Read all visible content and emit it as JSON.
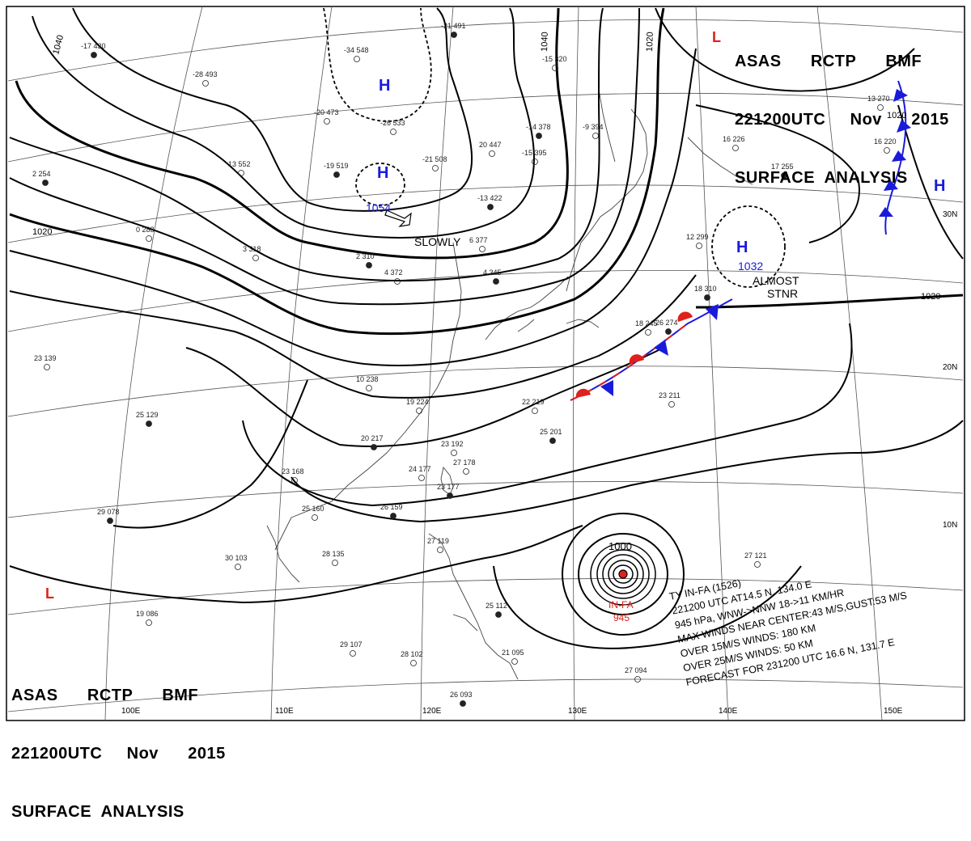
{
  "header": {
    "line1": "ASAS      RCTP      BMF",
    "line2": "221200UTC     Nov      2015",
    "line3": "SURFACE  ANALYSIS"
  },
  "pressure_centers": [
    {
      "type": "H",
      "value": "1054"
    },
    {
      "type": "H",
      "value": ""
    },
    {
      "type": "H",
      "value": "1032"
    },
    {
      "type": "H",
      "value": ""
    },
    {
      "type": "L",
      "value": ""
    },
    {
      "type": "L",
      "value": ""
    }
  ],
  "motion_labels": {
    "high_1054": "SLOWLY",
    "high_1032_a": "ALMOST",
    "high_1032_b": "STNR"
  },
  "isobar_labels": [
    "1040",
    "1040",
    "1020",
    "1020",
    "1020",
    "1020",
    "1000"
  ],
  "lat_labels": [
    "30N",
    "20N",
    "10N"
  ],
  "lon_labels": [
    "100E",
    "110E",
    "120E",
    "130E",
    "140E",
    "150E"
  ],
  "typhoon": {
    "name": "IN-FA",
    "pressure": "945",
    "info": [
      "TY  IN-FA  (1526)",
      "221200 UTC  AT14.5 N, 134.0 E",
      "945 hPa, WNW->NNW  18->11 KM/HR",
      "MAX WINDS NEAR CENTER:43 M/S,GUST:53 M/S",
      "OVER 15M/S WINDS: 180 KM",
      "OVER 25M/S WINDS: 50 KM",
      "FORECAST FOR 231200 UTC 16.6 N, 131.7 E"
    ]
  },
  "stations": [
    "-17 430",
    "-28 493",
    "-34 548",
    "-21 491",
    "-20 473",
    "-26 533",
    "-19 519",
    "13 552",
    "-21 508",
    "-14 378",
    "20 447",
    "-15 395",
    "-13 422",
    "-9 394",
    "-15 320",
    "2 254",
    "0 288",
    "3 318",
    "2 310",
    "4 372",
    "6 377",
    "4 345",
    "10 238",
    "19 224",
    "20 217",
    "23 168",
    "25 160",
    "26 159",
    "23 192",
    "24 177",
    "23 177",
    "28 135",
    "30 103",
    "29 078",
    "29 107",
    "28 102",
    "26 093",
    "27 094",
    "27 121",
    "26 274",
    "23 211",
    "22 219",
    "25 201",
    "18 245",
    "16 226",
    "17 255",
    "13 270",
    "16 220",
    "18 310",
    "12 299",
    "23 139",
    "25 129",
    "19 086",
    "27 119",
    "25 112",
    "21 095",
    "27 178"
  ],
  "colors": {
    "isobar": "#000000",
    "high": "#1a1adb",
    "low": "#e0201a",
    "cold_front": "#1a1adb",
    "warm_front": "#e0201a",
    "grid": "#555555",
    "coast": "#444444"
  }
}
